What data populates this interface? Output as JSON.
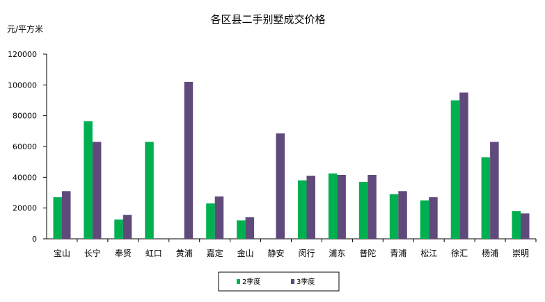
{
  "chart_data": {
    "type": "bar",
    "title": "各区县二手别墅成交价格",
    "ylabel": "元/平方米",
    "xlabel": "",
    "ylim": [
      0,
      120000
    ],
    "yticks": [
      0,
      20000,
      40000,
      60000,
      80000,
      100000,
      120000
    ],
    "grid": false,
    "legend": "bottom",
    "categories": [
      "宝山",
      "长宁",
      "奉贤",
      "虹口",
      "黄浦",
      "嘉定",
      "金山",
      "静安",
      "闵行",
      "浦东",
      "普陀",
      "青浦",
      "松江",
      "徐汇",
      "杨浦",
      "崇明"
    ],
    "series": [
      {
        "name": "2季度",
        "color": "#00b050",
        "values": [
          27000,
          76500,
          12500,
          63000,
          null,
          23000,
          12000,
          null,
          38000,
          42500,
          37000,
          29000,
          25000,
          90000,
          53000,
          18000
        ]
      },
      {
        "name": "3季度",
        "color": "#604a7b",
        "values": [
          31000,
          63000,
          15500,
          null,
          102000,
          27500,
          14000,
          68500,
          41000,
          41500,
          41500,
          31000,
          27000,
          95000,
          63000,
          16500
        ]
      }
    ]
  }
}
